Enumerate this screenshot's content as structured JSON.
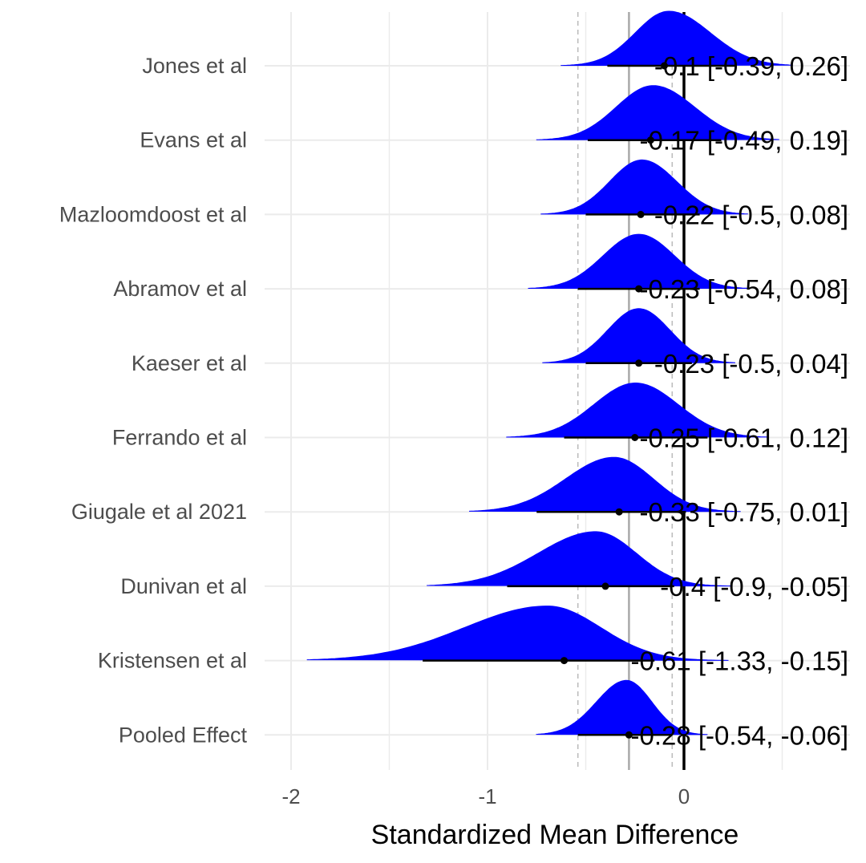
{
  "chart_data": {
    "type": "forest-density",
    "title": "",
    "xlabel": "Standardized Mean Difference",
    "ylabel": "",
    "xlim": [
      -2.5,
      0.55
    ],
    "x_ticks": [
      -2,
      -1,
      0
    ],
    "x_tick_labels": [
      "-2",
      "-1",
      "0"
    ],
    "grid": true,
    "colors": {
      "density": "#0000ff",
      "interval": "#000000",
      "zero_line": "#000000",
      "pooled_line": "#a9a9a9",
      "grid": "#ebebeb"
    },
    "pooled_reference": {
      "estimate": -0.28,
      "lower": -0.54,
      "upper": -0.06
    },
    "studies": [
      {
        "name": "Jones et al",
        "estimate": -0.1,
        "lower": -0.39,
        "upper": 0.26,
        "label": "-0.1 [-0.39, 0.26]"
      },
      {
        "name": "Evans et al",
        "estimate": -0.17,
        "lower": -0.49,
        "upper": 0.19,
        "label": "-0.17 [-0.49, 0.19]"
      },
      {
        "name": "Mazloomdoost et al",
        "estimate": -0.22,
        "lower": -0.5,
        "upper": 0.08,
        "label": "-0.22 [-0.5, 0.08]"
      },
      {
        "name": "Abramov et al",
        "estimate": -0.23,
        "lower": -0.54,
        "upper": 0.08,
        "label": "-0.23 [-0.54, 0.08]"
      },
      {
        "name": "Kaeser et al",
        "estimate": -0.23,
        "lower": -0.5,
        "upper": 0.04,
        "label": "-0.23 [-0.5, 0.04]"
      },
      {
        "name": "Ferrando et al",
        "estimate": -0.25,
        "lower": -0.61,
        "upper": 0.12,
        "label": "-0.25 [-0.61, 0.12]"
      },
      {
        "name": "Giugale et al  2021",
        "estimate": -0.33,
        "lower": -0.75,
        "upper": 0.01,
        "label": "-0.33 [-0.75, 0.01]"
      },
      {
        "name": "Dunivan et al",
        "estimate": -0.4,
        "lower": -0.9,
        "upper": -0.05,
        "label": "-0.4 [-0.9, -0.05]"
      },
      {
        "name": "Kristensen et al",
        "estimate": -0.61,
        "lower": -1.33,
        "upper": -0.15,
        "label": "-0.61 [-1.33, -0.15]"
      },
      {
        "name": "Pooled Effect",
        "estimate": -0.28,
        "lower": -0.54,
        "upper": -0.06,
        "label": "-0.28 [-0.54, -0.06]"
      }
    ]
  }
}
